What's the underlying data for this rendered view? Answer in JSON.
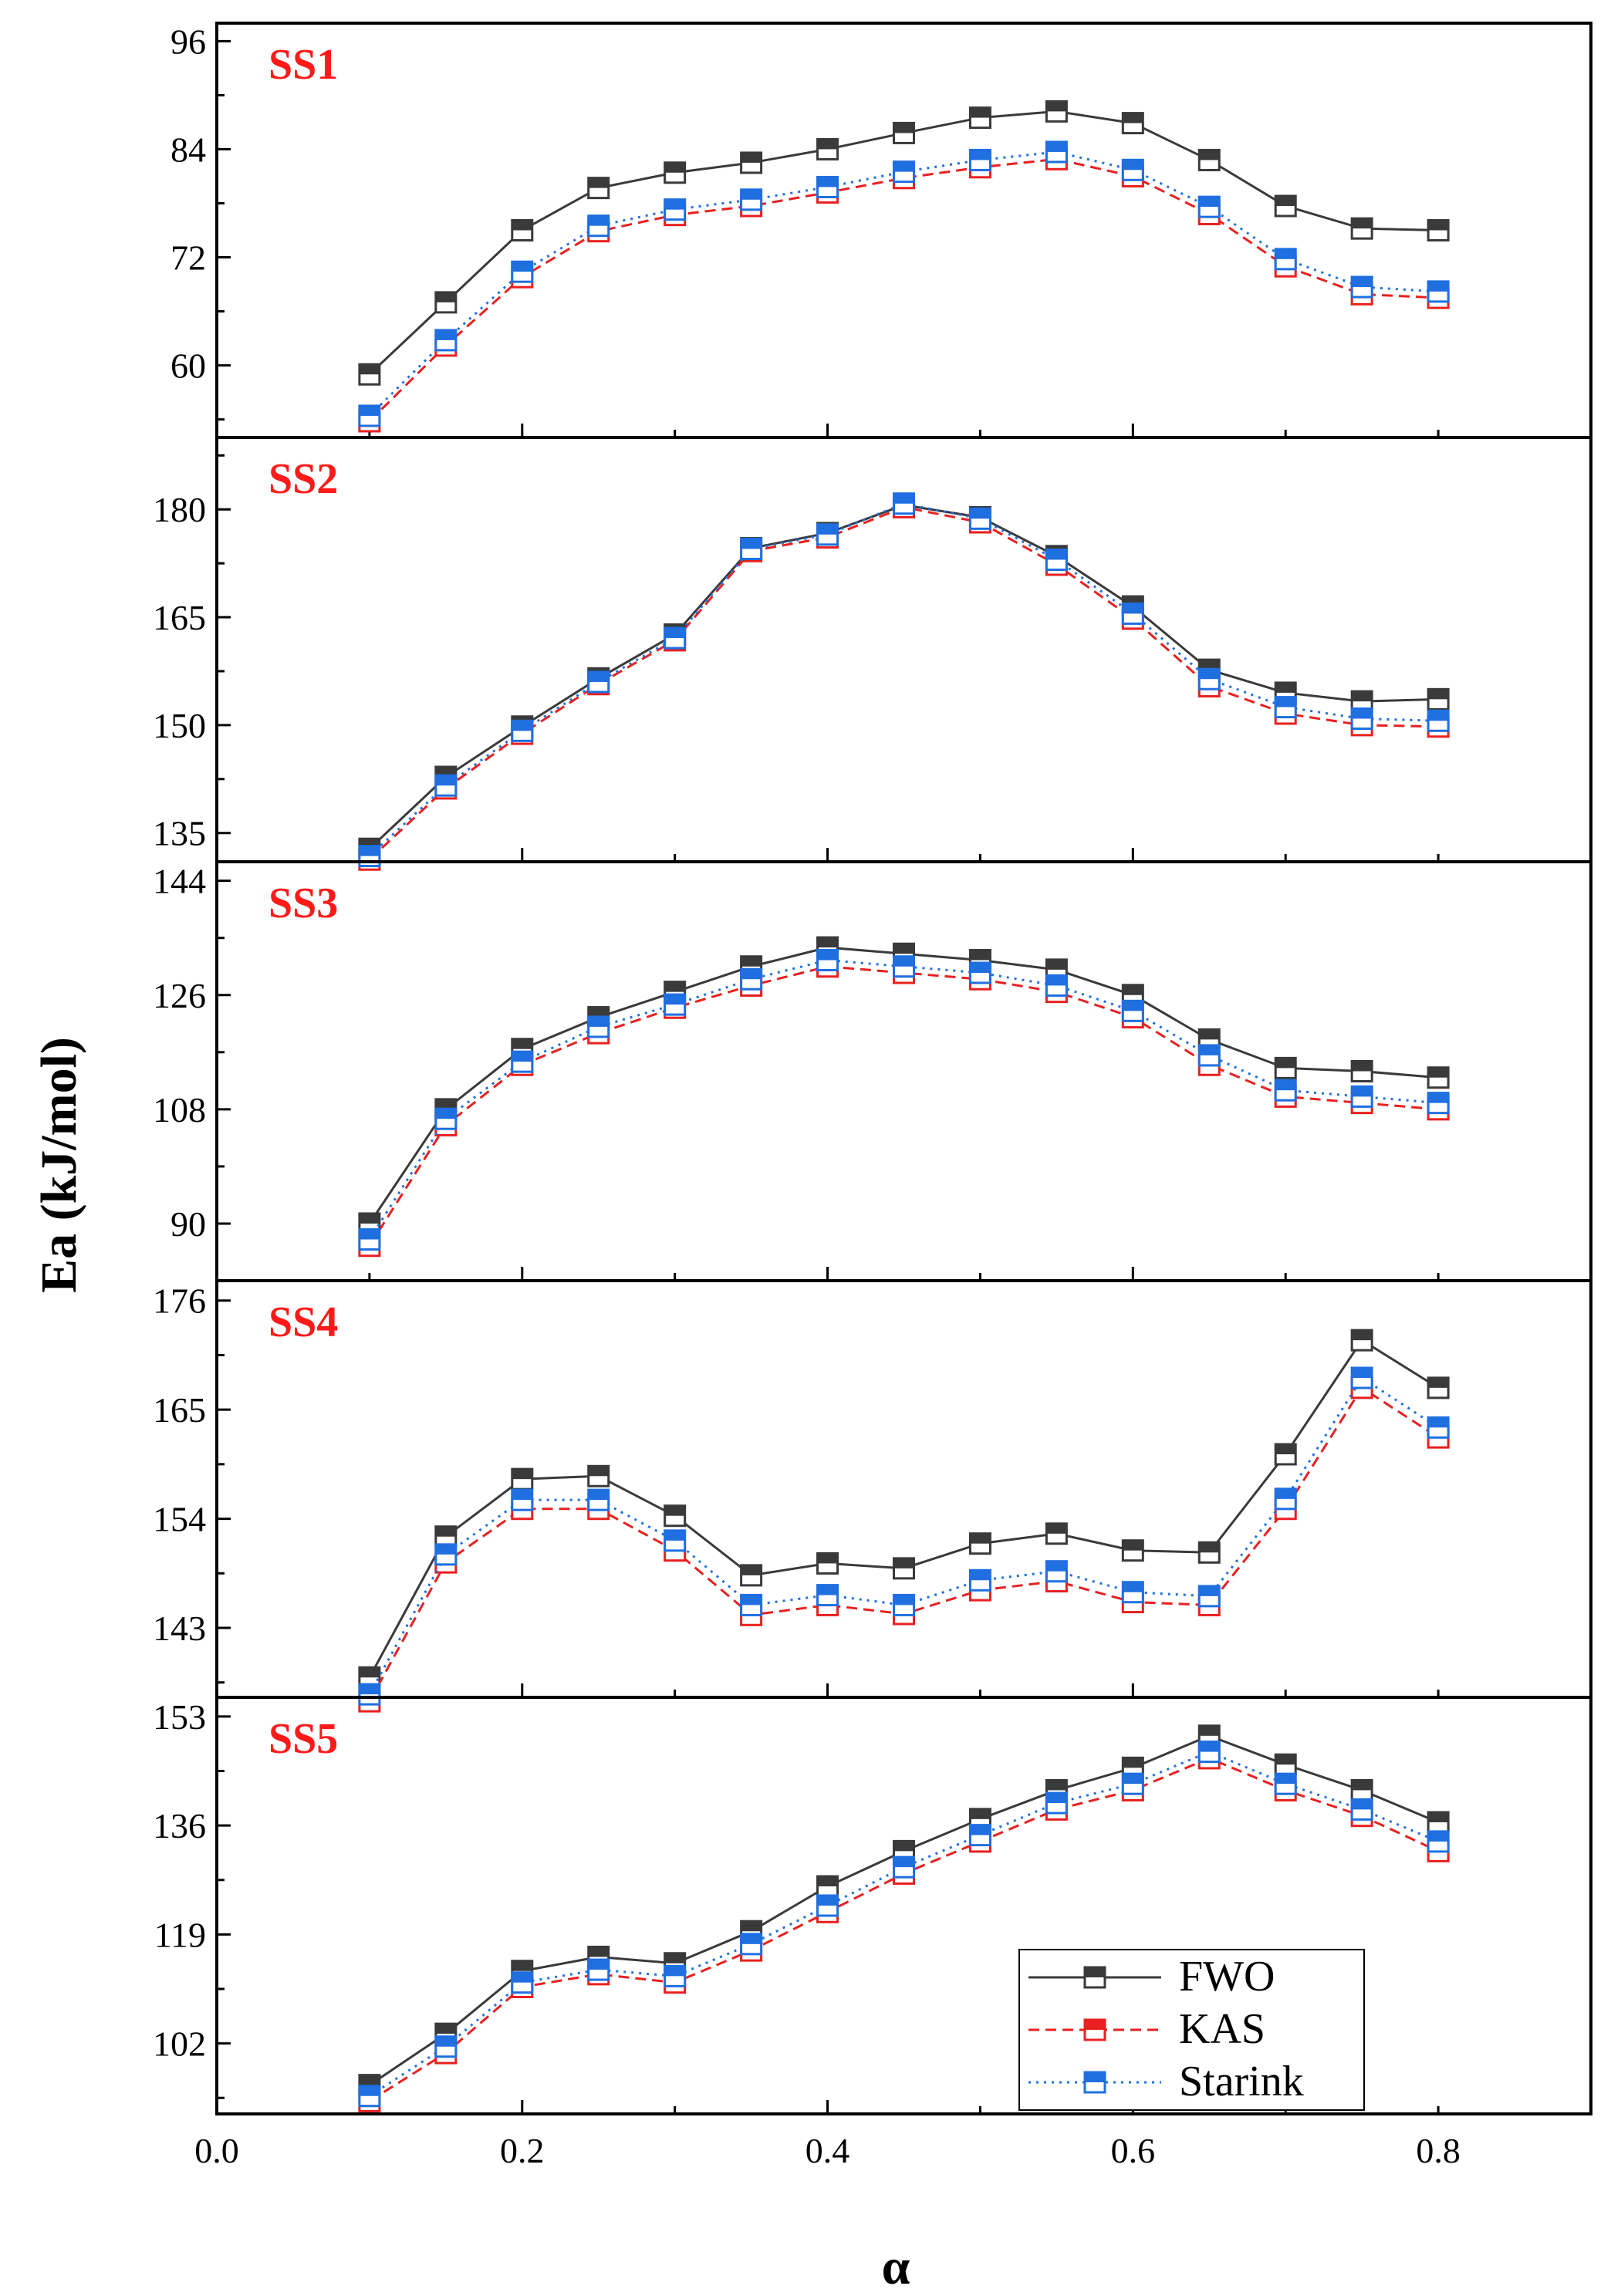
{
  "chart_data": {
    "type": "line",
    "xlabel": "α",
    "ylabel": "Ea (kJ/mol)",
    "xlim": [
      0.0,
      0.9
    ],
    "x_ticks": [
      0.0,
      0.2,
      0.4,
      0.6,
      0.8
    ],
    "x_tick_labels": [
      "0.0",
      "0.2",
      "0.4",
      "0.6",
      "0.8"
    ],
    "x": [
      0.1,
      0.15,
      0.2,
      0.25,
      0.3,
      0.35,
      0.4,
      0.45,
      0.5,
      0.55,
      0.6,
      0.65,
      0.7,
      0.75,
      0.8
    ],
    "legend": {
      "position": "bottom-right of panel SS5",
      "entries": [
        "FWO",
        "KAS",
        "Starink"
      ]
    },
    "series_styles": {
      "FWO": {
        "color": "#3a3a3a",
        "line": "solid"
      },
      "KAS": {
        "color": "#e82020",
        "line": "dashed"
      },
      "Starink": {
        "color": "#1f6fe0",
        "line": "dotted"
      }
    },
    "panels": [
      {
        "label": "SS1",
        "ylim": [
          52,
          98
        ],
        "y_ticks": [
          60,
          72,
          84,
          96
        ],
        "y_tick_labels": [
          "60",
          "72",
          "84",
          "96"
        ],
        "series": [
          {
            "name": "FWO",
            "values": [
              59.0,
              67.0,
              75.0,
              79.7,
              81.4,
              82.5,
              84.0,
              85.8,
              87.5,
              88.2,
              86.9,
              82.8,
              77.7,
              75.2,
              75.0
            ]
          },
          {
            "name": "KAS",
            "values": [
              53.8,
              62.2,
              69.8,
              74.9,
              76.7,
              77.7,
              79.2,
              80.8,
              82.0,
              82.9,
              81.0,
              76.8,
              71.0,
              67.9,
              67.5
            ]
          },
          {
            "name": "Starink",
            "values": [
              54.4,
              62.8,
              70.4,
              75.5,
              77.3,
              78.4,
              79.8,
              81.5,
              82.8,
              83.7,
              81.7,
              77.6,
              71.8,
              68.7,
              68.2
            ]
          }
        ]
      },
      {
        "label": "SS2",
        "ylim": [
          131,
          190
        ],
        "y_ticks": [
          135,
          150,
          165,
          180
        ],
        "y_tick_labels": [
          "135",
          "150",
          "165",
          "180"
        ],
        "series": [
          {
            "name": "FWO",
            "values": [
              132.8,
              142.8,
              149.8,
              156.5,
              162.6,
              174.6,
              176.7,
              180.6,
              178.9,
              173.5,
              166.5,
              157.7,
              154.5,
              153.3,
              153.6
            ]
          },
          {
            "name": "KAS",
            "values": [
              131.3,
              141.2,
              148.8,
              155.7,
              161.8,
              174.2,
              176.1,
              180.3,
              178.2,
              172.3,
              164.8,
              155.4,
              151.6,
              150.0,
              149.8
            ]
          },
          {
            "name": "Starink",
            "values": [
              131.8,
              141.6,
              149.2,
              156.0,
              162.1,
              174.5,
              176.5,
              180.8,
              178.7,
              173.0,
              165.5,
              156.4,
              152.5,
              150.9,
              150.6
            ]
          }
        ]
      },
      {
        "label": "SS3",
        "ylim": [
          81,
          147
        ],
        "y_ticks": [
          90,
          108,
          126,
          144
        ],
        "y_tick_labels": [
          "90",
          "108",
          "126",
          "144"
        ],
        "series": [
          {
            "name": "FWO",
            "values": [
              90.0,
              108.0,
              117.5,
              122.5,
              126.5,
              130.5,
              133.5,
              132.5,
              131.5,
              130.0,
              126.0,
              119.0,
              114.5,
              114.0,
              113.0
            ]
          },
          {
            "name": "KAS",
            "values": [
              86.5,
              105.5,
              115.0,
              120.0,
              124.0,
              127.5,
              130.5,
              129.5,
              128.5,
              126.5,
              122.5,
              115.0,
              110.0,
              109.0,
              108.0
            ]
          },
          {
            "name": "Starink",
            "values": [
              87.5,
              106.5,
              115.5,
              121.0,
              124.5,
              128.5,
              131.5,
              130.5,
              129.5,
              127.5,
              123.5,
              116.5,
              111.0,
              110.0,
              109.0
            ]
          }
        ]
      },
      {
        "label": "SS4",
        "ylim": [
          136,
          178
        ],
        "y_ticks": [
          143,
          154,
          165,
          176
        ],
        "y_tick_labels": [
          "143",
          "154",
          "165",
          "176"
        ],
        "series": [
          {
            "name": "FWO",
            "values": [
              138.0,
              152.2,
              158.0,
              158.3,
              154.3,
              148.3,
              149.5,
              149.0,
              151.5,
              152.5,
              150.8,
              150.6,
              160.5,
              172.0,
              167.2
            ]
          },
          {
            "name": "KAS",
            "values": [
              135.6,
              149.6,
              155.0,
              155.0,
              150.8,
              144.3,
              145.3,
              144.4,
              146.8,
              147.7,
              145.6,
              145.3,
              155.0,
              167.2,
              162.2
            ]
          },
          {
            "name": "Starink",
            "values": [
              136.3,
              150.4,
              155.9,
              155.9,
              151.8,
              145.3,
              146.3,
              145.3,
              147.8,
              148.7,
              146.6,
              146.2,
              156.0,
              168.2,
              163.2
            ]
          }
        ]
      },
      {
        "label": "SS5",
        "ylim": [
          91,
          156
        ],
        "y_ticks": [
          102,
          119,
          136,
          153
        ],
        "y_tick_labels": [
          "102",
          "119",
          "136",
          "153"
        ],
        "series": [
          {
            "name": "FWO",
            "values": [
              95.5,
              103.5,
              113.3,
              115.5,
              114.5,
              119.5,
              126.5,
              132.0,
              137.0,
              141.5,
              145.0,
              150.0,
              145.5,
              141.5,
              136.5
            ]
          },
          {
            "name": "KAS",
            "values": [
              93.0,
              100.5,
              110.8,
              112.8,
              111.5,
              116.5,
              122.5,
              128.5,
              133.5,
              138.5,
              141.5,
              146.5,
              141.5,
              137.5,
              132.0
            ]
          },
          {
            "name": "Starink",
            "values": [
              93.8,
              101.5,
              111.5,
              113.5,
              112.5,
              117.5,
              123.5,
              129.5,
              134.5,
              139.5,
              142.5,
              147.5,
              142.5,
              138.5,
              133.5
            ]
          }
        ]
      }
    ]
  }
}
